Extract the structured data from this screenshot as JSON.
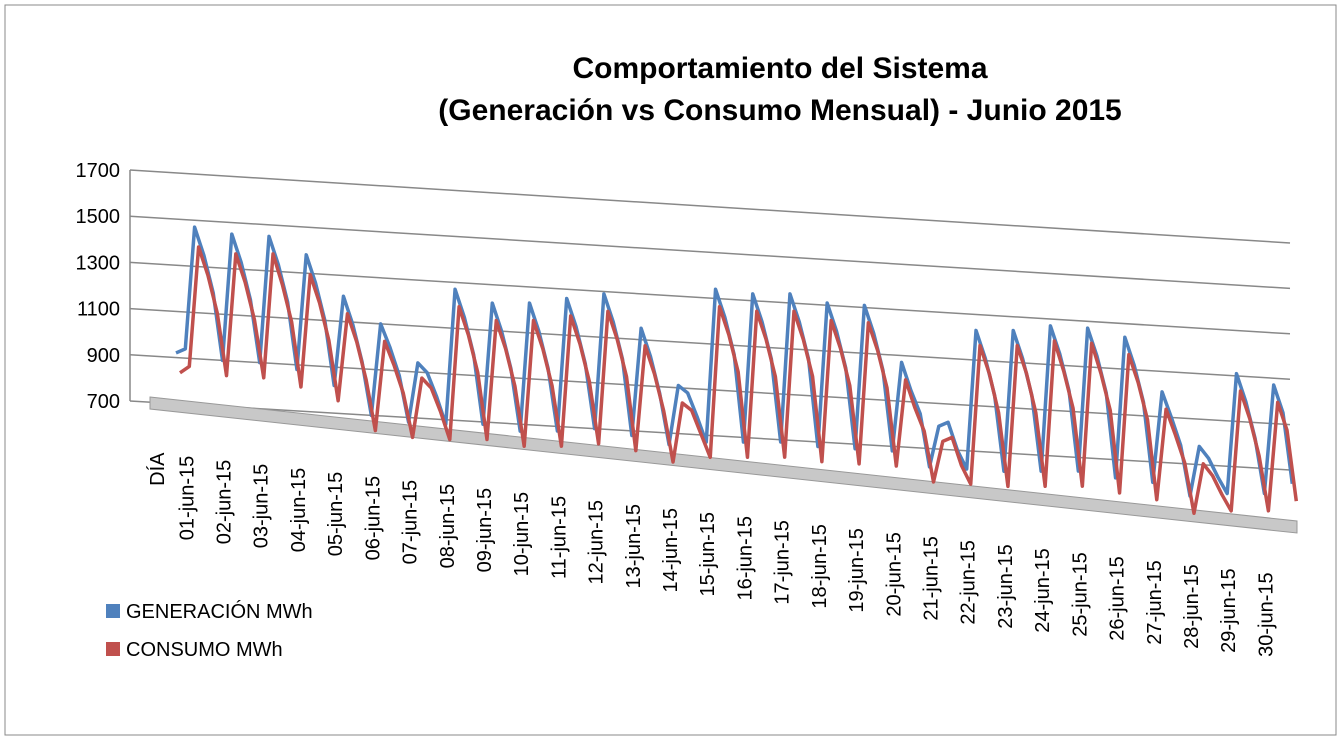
{
  "chart_data": {
    "type": "line3d",
    "title_lines": [
      "Comportamiento del Sistema",
      "(Generación vs Consumo  Mensual) - Junio 2015"
    ],
    "categories": [
      "DÍA",
      "01-jun-15",
      null,
      null,
      null,
      "02-jun-15",
      null,
      null,
      null,
      "03-jun-15",
      null,
      null,
      null,
      "04-jun-15",
      null,
      null,
      null,
      "05-jun-15",
      null,
      null,
      null,
      "06-jun-15",
      null,
      null,
      null,
      "07-jun-15",
      null,
      null,
      null,
      "08-jun-15",
      null,
      null,
      null,
      "09-jun-15",
      null,
      null,
      null,
      "10-jun-15",
      null,
      null,
      null,
      "11-jun-15",
      null,
      null,
      null,
      "12-jun-15",
      null,
      null,
      null,
      "13-jun-15",
      null,
      null,
      null,
      "14-jun-15",
      null,
      null,
      null,
      "15-jun-15",
      null,
      null,
      null,
      "16-jun-15",
      null,
      null,
      null,
      "17-jun-15",
      null,
      null,
      null,
      "18-jun-15",
      null,
      null,
      null,
      "19-jun-15",
      null,
      null,
      null,
      "20-jun-15",
      null,
      null,
      null,
      "21-jun-15",
      null,
      null,
      null,
      "22-jun-15",
      null,
      null,
      null,
      "23-jun-15",
      null,
      null,
      null,
      "24-jun-15",
      null,
      null,
      null,
      "25-jun-15",
      null,
      null,
      null,
      "26-jun-15",
      null,
      null,
      null,
      "27-jun-15",
      null,
      null,
      null,
      "28-jun-15",
      null,
      null,
      null,
      "29-jun-15",
      null,
      null,
      null,
      "30-jun-15",
      null,
      null,
      null
    ],
    "series": [
      {
        "name": "GENERACIÓN MWh",
        "color": "#4f81bd",
        "values": [
          920,
          940,
          1470,
          1350,
          1190,
          900,
          1450,
          1330,
          1170,
          900,
          1450,
          1330,
          1170,
          880,
          1380,
          1260,
          1100,
          820,
          1210,
          1090,
          930,
          700,
          1100,
          1000,
          880,
          680,
          940,
          900,
          800,
          680,
          1270,
          1150,
          990,
          690,
          1220,
          1100,
          940,
          670,
          1230,
          1110,
          950,
          680,
          1260,
          1140,
          980,
          700,
          1290,
          1170,
          1010,
          680,
          1150,
          1030,
          870,
          650,
          910,
          880,
          780,
          670,
          1340,
          1220,
          1060,
          680,
          1330,
          1210,
          1050,
          690,
          1340,
          1220,
          1060,
          680,
          1310,
          1190,
          1030,
          680,
          1310,
          1190,
          1030,
          680,
          1070,
          950,
          850,
          620,
          800,
          820,
          700,
          620,
          1230,
          1110,
          950,
          620,
          1240,
          1120,
          960,
          630,
          1270,
          1150,
          990,
          640,
          1270,
          1150,
          990,
          620,
          1240,
          1120,
          960,
          610,
          1010,
          900,
          780,
          560,
          780,
          730,
          650,
          580,
          1110,
          990,
          830,
          590,
          1070,
          950,
          640
        ]
      },
      {
        "name": "CONSUMO MWh",
        "color": "#c0504d",
        "values": [
          860,
          890,
          1410,
          1290,
          1130,
          860,
          1390,
          1270,
          1110,
          860,
          1400,
          1270,
          1110,
          830,
          1320,
          1200,
          1040,
          780,
          1160,
          1040,
          880,
          660,
          1050,
          950,
          830,
          640,
          900,
          860,
          760,
          640,
          1220,
          1100,
          940,
          650,
          1170,
          1050,
          890,
          630,
          1180,
          1060,
          900,
          640,
          1210,
          1090,
          930,
          660,
          1240,
          1120,
          960,
          640,
          1100,
          980,
          820,
          600,
          860,
          830,
          730,
          630,
          1290,
          1170,
          1010,
          640,
          1280,
          1160,
          1000,
          650,
          1290,
          1170,
          1010,
          640,
          1260,
          1140,
          980,
          640,
          1260,
          1140,
          980,
          640,
          1020,
          900,
          800,
          580,
          760,
          780,
          660,
          580,
          1190,
          1070,
          900,
          580,
          1200,
          1080,
          910,
          590,
          1230,
          1100,
          940,
          600,
          1230,
          1100,
          940,
          580,
          1190,
          1070,
          910,
          560,
          960,
          850,
          730,
          510,
          730,
          680,
          600,
          530,
          1060,
          940,
          780,
          540,
          1020,
          900,
          590
        ]
      }
    ],
    "ylim": [
      700,
      1700
    ],
    "yticks": [
      700,
      900,
      1100,
      1300,
      1500,
      1700
    ],
    "grid": true,
    "legend": "bottom-left"
  }
}
